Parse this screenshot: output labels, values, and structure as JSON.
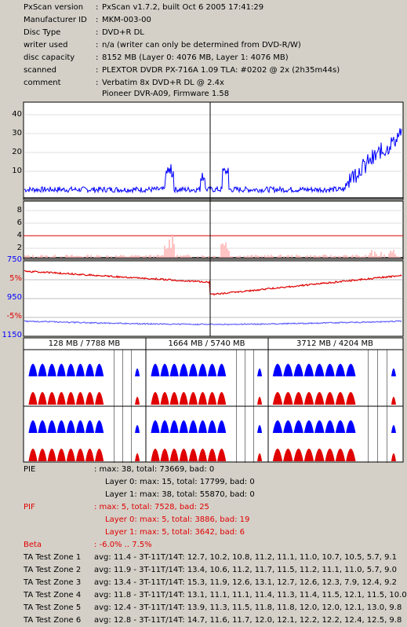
{
  "info": [
    {
      "key": "PxScan version",
      "value": "PxScan v1.7.2, built Oct  6 2005 17:41:29"
    },
    {
      "key": "Manufacturer ID",
      "value": "MKM-003-00"
    },
    {
      "key": "Disc Type",
      "value": "DVD+R DL"
    },
    {
      "key": "writer used",
      "value": "n/a (writer can only be determined from DVD-R/W)"
    },
    {
      "key": "disc capacity",
      "value": "8152 MB (Layer 0: 4076 MB,  Layer 1: 4076 MB)"
    },
    {
      "key": "scanned",
      "value": "PLEXTOR DVDR PX-716A 1.09 TLA: #0202 @ 2x (2h35m44s)"
    },
    {
      "key": "comment",
      "value": "Verbatim 8x DVD+R DL @ 2.4x"
    },
    {
      "key": "",
      "value": "Pioneer DVR-A09, Firmware 1.58"
    }
  ],
  "colon": ":",
  "axes": {
    "pie_ticks": [
      "40",
      "30",
      "20",
      "10"
    ],
    "pif_ticks": [
      "8",
      "6",
      "4",
      "2"
    ],
    "jitter_ticks": [
      "750",
      "5%",
      "950",
      "-5%",
      "1150"
    ]
  },
  "colors": {
    "pie": "#0000ff",
    "pif": "#e00000",
    "grid": "#000000",
    "bg": "#ffffff"
  },
  "zones": [
    {
      "label": "128 MB / 7788 MB"
    },
    {
      "label": "1664 MB / 5740 MB"
    },
    {
      "label": "3712 MB / 4204 MB"
    }
  ],
  "stats": {
    "pie_label": "PIE",
    "pie_total": ": max: 38, total: 73669, bad: 0",
    "pie_l0": "Layer 0: max: 15, total: 17799, bad: 0",
    "pie_l1": "Layer 1: max: 38, total: 55870, bad: 0",
    "pif_label": "PIF",
    "pif_total": ": max: 5, total: 7528, bad: 25",
    "pif_l0": "Layer 0: max: 5, total: 3886, bad: 19",
    "pif_l1": "Layer 1: max: 5, total: 3642, bad: 6",
    "beta_label": "Beta",
    "beta_value": ": -6.0% .. 7.5%",
    "ta": [
      {
        "label": "TA Test Zone 1",
        "value": "avg: 11.4 - 3T-11T/14T: 12.7, 10.2, 10.8, 11.2, 11.1, 11.0, 10.7, 10.5, 5.7, 9.1"
      },
      {
        "label": "TA Test Zone 2",
        "value": "avg: 11.9 - 3T-11T/14T: 13.4, 10.6, 11.2, 11.7, 11.5, 11.2, 11.1, 11.0, 5.7, 9.0"
      },
      {
        "label": "TA Test Zone 3",
        "value": "avg: 13.4 - 3T-11T/14T: 15.3, 11.9, 12.6, 13.1, 12.7, 12.6, 12.3, 7.9, 12.4, 9.2"
      },
      {
        "label": "TA Test Zone 4",
        "value": "avg: 11.8 - 3T-11T/14T: 13.1, 11.1, 11.1, 11.4, 11.3, 11.4, 11.5, 12.1, 11.5, 10.0"
      },
      {
        "label": "TA Test Zone 5",
        "value": "avg: 12.4 - 3T-11T/14T: 13.9, 11.3, 11.5, 11.8, 11.8, 12.0, 12.0, 12.1, 13.0, 9.8"
      },
      {
        "label": "TA Test Zone 6",
        "value": "avg: 12.8 - 3T-11T/14T: 14.7, 11.6, 11.7, 12.0, 12.1, 12.2, 12.2, 12.4, 12.5, 9.8"
      }
    ]
  }
}
